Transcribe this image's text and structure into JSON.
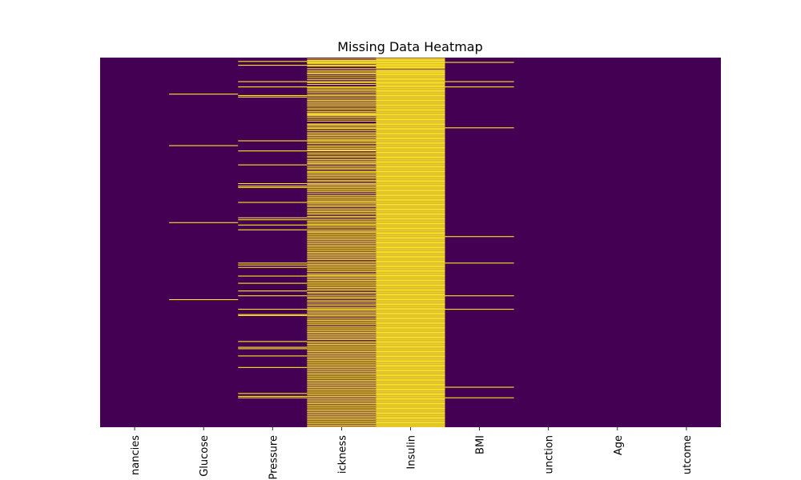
{
  "chart_data": {
    "type": "heatmap",
    "title": "Missing Data Heatmap",
    "xlabel": "",
    "ylabel": "",
    "n_rows": 768,
    "colors": {
      "present": "#440154",
      "missing": "#fde725"
    },
    "categories": [
      "Pregnancies",
      "Glucose",
      "BloodPressure",
      "SkinThickness",
      "Insulin",
      "BMI",
      "DiabetesPedigreeFunction",
      "Age",
      "Outcome"
    ],
    "tick_labels_visible": [
      "nancies",
      "Glucose",
      "Pressure",
      "ickness",
      "Insulin",
      "BMI",
      "unction",
      "Age",
      "utcome"
    ],
    "missing_rows": [
      [],
      [
        75,
        182,
        342,
        502
      ],
      [
        7,
        15,
        49,
        60,
        78,
        81,
        172,
        193,
        222,
        261,
        266,
        269,
        300,
        332,
        336,
        347,
        357,
        426,
        430,
        435,
        453,
        468,
        484,
        494,
        522,
        533,
        535,
        589,
        601,
        604,
        619,
        643,
        697,
        703,
        706
      ],
      [
        2,
        5,
        7,
        9,
        10,
        12,
        15,
        17,
        22,
        26,
        29,
        32,
        33,
        37,
        41,
        45,
        49,
        51,
        55,
        60,
        62,
        65,
        68,
        71,
        75,
        78,
        81,
        85,
        88,
        91,
        94,
        97,
        100,
        104,
        107,
        111,
        114,
        116,
        118,
        120,
        123,
        127,
        131,
        137,
        139,
        142,
        145,
        147,
        151,
        155,
        158,
        161,
        164,
        167,
        170,
        172,
        175,
        178,
        182,
        185,
        188,
        191,
        193,
        197,
        200,
        204,
        207,
        211,
        214,
        217,
        219,
        222,
        226,
        229,
        232,
        236,
        238,
        241,
        244,
        247,
        250,
        254,
        257,
        261,
        263,
        266,
        269,
        272,
        275,
        278,
        282,
        286,
        289,
        292,
        295,
        298,
        300,
        303,
        306,
        309,
        313,
        316,
        319,
        322,
        325,
        329,
        332,
        336,
        339,
        342,
        345,
        347,
        350,
        353,
        357,
        360,
        362,
        365,
        368,
        371,
        374,
        377,
        380,
        383,
        386,
        389,
        392,
        395,
        398,
        401,
        404,
        407,
        410,
        413,
        416,
        419,
        423,
        426,
        429,
        432,
        435,
        438,
        441,
        444,
        448,
        451,
        453,
        456,
        459,
        462,
        465,
        468,
        471,
        474,
        477,
        480,
        483,
        487,
        490,
        494,
        497,
        500,
        504,
        507,
        511,
        514,
        518,
        521,
        523,
        526,
        529,
        532,
        535,
        538,
        542,
        545,
        548,
        551,
        554,
        558,
        561,
        564,
        567,
        570,
        573,
        576,
        579,
        582,
        585,
        589,
        592,
        595,
        598,
        601,
        604,
        607,
        610,
        613,
        616,
        619,
        622,
        625,
        628,
        631,
        634,
        637,
        640,
        643,
        646,
        649,
        652,
        655,
        658,
        661,
        664,
        667,
        670,
        673,
        676,
        679,
        682,
        685,
        688,
        691,
        694,
        697,
        700,
        703,
        706,
        709,
        712,
        715,
        718,
        721,
        724,
        727,
        730,
        733,
        736,
        739,
        742,
        745,
        748,
        751,
        754,
        757,
        760,
        763,
        766
      ],
      [
        1,
        2,
        4,
        5,
        7,
        8,
        10,
        12,
        13,
        15,
        16,
        18,
        20,
        22,
        25,
        26,
        28,
        30,
        32,
        33,
        35,
        37,
        39,
        41,
        43,
        45,
        47,
        49,
        51,
        52,
        54,
        56,
        58,
        60,
        62,
        64,
        66,
        68,
        70,
        72,
        74,
        76,
        78,
        80,
        82,
        84,
        86,
        88,
        90,
        92,
        94,
        96,
        98,
        100,
        102,
        104,
        106,
        108,
        110,
        112,
        114,
        116,
        118,
        120,
        122,
        124,
        126,
        128,
        130,
        132,
        134,
        136,
        138,
        140,
        142,
        144,
        146,
        148,
        150,
        152,
        154,
        156,
        158,
        160,
        162,
        164,
        166,
        168,
        170,
        172,
        174,
        176,
        178,
        180,
        182,
        184,
        186,
        188,
        190,
        192,
        194,
        196,
        198,
        200,
        202,
        204,
        206,
        208,
        210,
        212,
        214,
        216,
        218,
        220,
        222,
        224,
        226,
        228,
        230,
        232,
        234,
        236,
        238,
        240,
        242,
        244,
        246,
        248,
        250,
        252,
        254,
        256,
        258,
        260,
        262,
        264,
        266,
        268,
        270,
        272,
        274,
        276,
        278,
        280,
        282,
        284,
        286,
        288,
        290,
        292,
        294,
        296,
        298,
        300,
        302,
        304,
        306,
        308,
        310,
        312,
        314,
        316,
        318,
        320,
        322,
        324,
        326,
        328,
        330,
        332,
        334,
        336,
        338,
        340,
        342,
        344,
        346,
        348,
        350,
        352,
        354,
        356,
        358,
        360,
        362,
        364,
        366,
        368,
        370,
        372,
        374,
        376,
        378,
        380,
        382,
        384,
        386,
        388,
        390,
        392,
        394,
        396,
        398,
        400,
        402,
        404,
        406,
        408,
        410,
        412,
        414,
        416,
        418,
        420,
        422,
        424,
        426,
        428,
        430,
        432,
        434,
        436,
        438,
        440,
        442,
        444,
        446,
        448,
        450,
        452,
        454,
        456,
        458,
        460,
        462,
        464,
        466,
        468,
        470,
        472,
        474,
        476,
        478,
        480,
        482,
        484,
        486,
        488,
        490,
        492,
        494,
        496,
        498,
        500,
        502,
        504,
        506,
        508,
        510,
        512,
        514,
        516,
        518,
        520,
        522,
        524,
        526,
        528,
        530,
        532,
        534,
        536,
        538,
        540,
        542,
        544,
        546,
        548,
        550,
        552,
        554,
        556,
        558,
        560,
        562,
        564,
        566,
        568,
        570,
        572,
        574,
        576,
        578,
        580,
        582,
        584,
        586,
        588,
        590,
        592,
        594,
        596,
        598,
        600,
        602,
        604,
        606,
        608,
        610,
        612,
        614,
        616,
        618,
        620,
        622,
        624,
        626,
        628,
        630,
        632,
        634,
        636,
        638,
        640,
        642,
        644,
        646,
        648,
        650,
        652,
        654,
        656,
        658,
        660,
        662,
        664,
        666,
        668,
        670,
        672,
        674,
        676,
        678,
        680,
        682,
        684,
        686,
        688,
        690,
        692,
        694,
        696,
        698,
        700,
        702,
        704,
        706,
        708,
        710,
        712,
        714,
        716,
        718,
        720,
        722,
        724,
        726,
        728,
        730,
        732,
        734,
        736,
        738,
        740,
        742,
        744,
        746,
        748,
        750,
        752,
        754,
        756,
        758,
        760,
        762,
        764,
        766
      ],
      [
        9,
        49,
        60,
        145,
        371,
        426,
        494,
        522,
        684,
        706
      ],
      [],
      [],
      []
    ]
  }
}
